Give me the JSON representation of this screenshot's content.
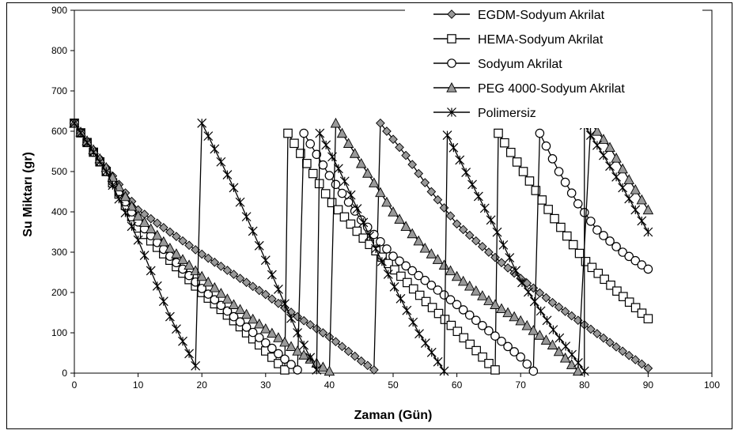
{
  "chart_data": {
    "type": "line",
    "title": "",
    "xlabel": "Zaman (Gün)",
    "ylabel": "Su Miktarı (gr)",
    "xlim": [
      0,
      100
    ],
    "ylim": [
      0,
      900
    ],
    "xticks": [
      0,
      10,
      20,
      30,
      40,
      50,
      60,
      70,
      80,
      90,
      100
    ],
    "yticks": [
      0,
      100,
      200,
      300,
      400,
      500,
      600,
      700,
      800,
      900
    ],
    "grid": false,
    "legend_position": "top-right",
    "series": [
      {
        "name": "EGDM-Sodyum Akrilat",
        "marker": "diamond",
        "segments": [
          {
            "x_start": 0,
            "x_end": 47,
            "y_start": 620,
            "y_end": 8,
            "anchors": [
              [
                0,
                620
              ],
              [
                5,
                510
              ],
              [
                10,
                405
              ],
              [
                15,
                350
              ],
              [
                20,
                295
              ],
              [
                25,
                245
              ],
              [
                30,
                195
              ],
              [
                35,
                140
              ],
              [
                40,
                90
              ],
              [
                45,
                30
              ],
              [
                47,
                8
              ]
            ]
          },
          {
            "x_start": 48,
            "x_end": 90,
            "y_start": 620,
            "y_end": 12,
            "anchors": [
              [
                48,
                620
              ],
              [
                52,
                540
              ],
              [
                56,
                450
              ],
              [
                60,
                370
              ],
              [
                65,
                300
              ],
              [
                70,
                235
              ],
              [
                75,
                175
              ],
              [
                80,
                120
              ],
              [
                85,
                65
              ],
              [
                90,
                12
              ]
            ]
          }
        ]
      },
      {
        "name": "HEMA-Sodyum Akrilat",
        "marker": "square",
        "segments": [
          {
            "x_start": 0,
            "x_end": 33,
            "y_start": 620,
            "y_end": 8,
            "anchors": [
              [
                0,
                620
              ],
              [
                5,
                500
              ],
              [
                10,
                360
              ],
              [
                15,
                280
              ],
              [
                20,
                200
              ],
              [
                25,
                130
              ],
              [
                30,
                55
              ],
              [
                33,
                8
              ]
            ]
          },
          {
            "x_start": 33.5,
            "x_end": 66,
            "y_start": 595,
            "y_end": 8,
            "anchors": [
              [
                33.5,
                595
              ],
              [
                40,
                430
              ],
              [
                45,
                340
              ],
              [
                50,
                260
              ],
              [
                55,
                180
              ],
              [
                60,
                105
              ],
              [
                66,
                8
              ]
            ]
          },
          {
            "x_start": 66.5,
            "x_end": 90,
            "y_start": 595,
            "y_end": 135,
            "anchors": [
              [
                66.5,
                595
              ],
              [
                70,
                510
              ],
              [
                75,
                390
              ],
              [
                80,
                280
              ],
              [
                85,
                205
              ],
              [
                90,
                135
              ]
            ]
          }
        ]
      },
      {
        "name": "Sodyum Akrilat",
        "marker": "circle",
        "segments": [
          {
            "x_start": 0,
            "x_end": 35,
            "y_start": 620,
            "y_end": 8,
            "anchors": [
              [
                0,
                620
              ],
              [
                5,
                500
              ],
              [
                10,
                375
              ],
              [
                15,
                290
              ],
              [
                20,
                210
              ],
              [
                25,
                140
              ],
              [
                30,
                75
              ],
              [
                35,
                8
              ]
            ]
          },
          {
            "x_start": 36,
            "x_end": 72,
            "y_start": 595,
            "y_end": 5,
            "anchors": [
              [
                36,
                595
              ],
              [
                40,
                490
              ],
              [
                45,
                380
              ],
              [
                50,
                290
              ],
              [
                55,
                230
              ],
              [
                60,
                170
              ],
              [
                65,
                105
              ],
              [
                70,
                40
              ],
              [
                72,
                5
              ]
            ]
          },
          {
            "x_start": 73,
            "x_end": 90,
            "y_start": 595,
            "y_end": 258,
            "anchors": [
              [
                73,
                595
              ],
              [
                76,
                500
              ],
              [
                79,
                420
              ],
              [
                82,
                355
              ],
              [
                86,
                300
              ],
              [
                90,
                258
              ]
            ]
          }
        ]
      },
      {
        "name": "PEG 4000-Sodyum Akrilat",
        "marker": "triangle",
        "segments": [
          {
            "x_start": 0,
            "x_end": 40,
            "y_start": 620,
            "y_end": 5,
            "anchors": [
              [
                0,
                620
              ],
              [
                5,
                510
              ],
              [
                10,
                390
              ],
              [
                15,
                310
              ],
              [
                20,
                240
              ],
              [
                25,
                170
              ],
              [
                30,
                110
              ],
              [
                35,
                55
              ],
              [
                40,
                5
              ]
            ]
          },
          {
            "x_start": 41,
            "x_end": 79,
            "y_start": 620,
            "y_end": 5,
            "anchors": [
              [
                41,
                620
              ],
              [
                45,
                520
              ],
              [
                50,
                400
              ],
              [
                55,
                310
              ],
              [
                60,
                240
              ],
              [
                65,
                180
              ],
              [
                70,
                130
              ],
              [
                75,
                70
              ],
              [
                79,
                5
              ]
            ]
          },
          {
            "x_start": 81,
            "x_end": 90,
            "y_start": 620,
            "y_end": 405,
            "anchors": [
              [
                81,
                620
              ],
              [
                84,
                560
              ],
              [
                87,
                480
              ],
              [
                90,
                405
              ]
            ]
          }
        ]
      },
      {
        "name": "Polimersiz",
        "marker": "asterisk",
        "segments": [
          {
            "x_start": 0,
            "x_end": 19,
            "y_start": 620,
            "y_end": 18,
            "anchors": [
              [
                0,
                620
              ],
              [
                5,
                500
              ],
              [
                10,
                330
              ],
              [
                15,
                140
              ],
              [
                19,
                18
              ]
            ]
          },
          {
            "x_start": 20,
            "x_end": 38,
            "y_start": 620,
            "y_end": 8,
            "anchors": [
              [
                20,
                620
              ],
              [
                25,
                460
              ],
              [
                30,
                280
              ],
              [
                35,
                100
              ],
              [
                38,
                8
              ]
            ]
          },
          {
            "x_start": 38.5,
            "x_end": 58,
            "y_start": 595,
            "y_end": 5,
            "anchors": [
              [
                38.5,
                595
              ],
              [
                42,
                490
              ],
              [
                46,
                350
              ],
              [
                50,
                220
              ],
              [
                54,
                100
              ],
              [
                58,
                5
              ]
            ]
          },
          {
            "x_start": 58.5,
            "x_end": 80,
            "y_start": 590,
            "y_end": 5,
            "anchors": [
              [
                58.5,
                590
              ],
              [
                62,
                480
              ],
              [
                66,
                360
              ],
              [
                70,
                230
              ],
              [
                75,
                110
              ],
              [
                80,
                5
              ]
            ]
          },
          {
            "x_start": 80,
            "x_end": 90,
            "y_start": 615,
            "y_end": 350,
            "anchors": [
              [
                80,
                615
              ],
              [
                83,
                540
              ],
              [
                86,
                460
              ],
              [
                90,
                350
              ]
            ]
          }
        ]
      }
    ]
  }
}
